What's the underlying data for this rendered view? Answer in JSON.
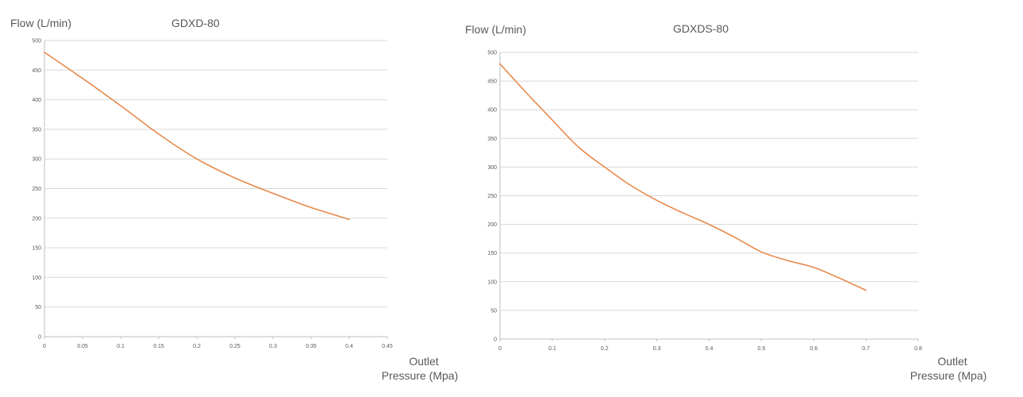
{
  "chart_data": [
    {
      "type": "line",
      "title": "GDXD-80",
      "ylabel": "Flow  (L/min)",
      "xlabel_line1": "Outlet",
      "xlabel_line2": "Pressure  (Mpa)",
      "xlim": [
        0,
        0.45
      ],
      "ylim": [
        0,
        500
      ],
      "xticks": [
        "0",
        "0.05",
        "0.1",
        "0.15",
        "0.2",
        "0.25",
        "0.3",
        "0.35",
        "0.4",
        "0.45"
      ],
      "yticks": [
        "0",
        "50",
        "100",
        "150",
        "200",
        "250",
        "300",
        "350",
        "400",
        "450",
        "500"
      ],
      "grid": true,
      "color": "#e8894a",
      "x": [
        0,
        0.05,
        0.1,
        0.15,
        0.2,
        0.25,
        0.3,
        0.35,
        0.4
      ],
      "y": [
        480,
        436,
        390,
        342,
        300,
        268,
        242,
        218,
        198
      ]
    },
    {
      "type": "line",
      "title": "GDXDS-80",
      "ylabel": "Flow  (L/min)",
      "xlabel_line1": "Outlet",
      "xlabel_line2": "Pressure  (Mpa)",
      "xlim": [
        0,
        0.8
      ],
      "ylim": [
        0,
        500
      ],
      "xticks": [
        "0",
        "0.1",
        "0.2",
        "0.3",
        "0.4",
        "0.5",
        "0.6",
        "0.7",
        "0.8"
      ],
      "yticks": [
        "0",
        "50",
        "100",
        "150",
        "200",
        "250",
        "300",
        "350",
        "400",
        "450",
        "500"
      ],
      "grid": true,
      "color": "#e8894a",
      "x": [
        0,
        0.05,
        0.1,
        0.15,
        0.2,
        0.25,
        0.3,
        0.35,
        0.4,
        0.45,
        0.5,
        0.55,
        0.6,
        0.65,
        0.7
      ],
      "y": [
        480,
        430,
        382,
        335,
        300,
        268,
        242,
        220,
        200,
        177,
        152,
        137,
        125,
        106,
        85
      ]
    }
  ]
}
